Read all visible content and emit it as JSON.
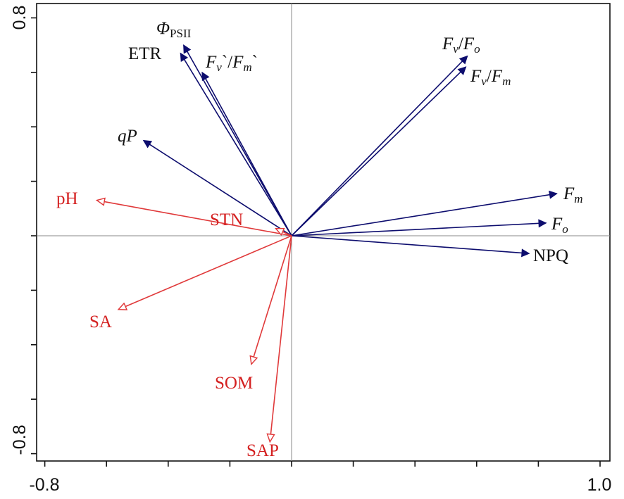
{
  "chart_data": {
    "type": "biplot",
    "title": "",
    "xlim": [
      -0.8,
      1.0
    ],
    "ylim": [
      -0.8,
      0.8
    ],
    "x_tick_labels": [
      "-0.8",
      "1.0"
    ],
    "y_tick_labels": [
      "0.8",
      "-0.8"
    ],
    "x_ticks": [
      -0.8,
      -0.6,
      -0.4,
      -0.2,
      0,
      0.2,
      0.4,
      0.6,
      0.8,
      1.0
    ],
    "y_ticks": [
      0.8,
      0.6,
      0.4,
      0.2,
      0,
      -0.2,
      -0.4,
      -0.6,
      -0.8
    ],
    "colors": {
      "response": "#0d0d6e",
      "explanatory": "#e0393a",
      "label_response": "#111111",
      "label_explanatory": "#d42020"
    },
    "response_vectors": [
      {
        "id": "phipsii",
        "label": "ΦPSII",
        "parts": [
          {
            "t": "Φ",
            "i": true
          },
          {
            "t": "PSII",
            "sub": true
          }
        ],
        "x": -0.35,
        "y": 0.7
      },
      {
        "id": "etr",
        "label": "ETR",
        "parts": [
          {
            "t": "ETR"
          }
        ],
        "x": -0.36,
        "y": 0.67
      },
      {
        "id": "fvfm_prime",
        "label": "Fv`/Fm`",
        "parts": [
          {
            "t": "F",
            "i": true
          },
          {
            "t": "v",
            "i": true,
            "sub": true
          },
          {
            "t": "`/"
          },
          {
            "t": "F",
            "i": true
          },
          {
            "t": "m",
            "i": true,
            "sub": true
          },
          {
            "t": "`"
          }
        ],
        "x": -0.29,
        "y": 0.6
      },
      {
        "id": "qp",
        "label": "qP",
        "parts": [
          {
            "t": "qP",
            "i": true
          }
        ],
        "x": -0.48,
        "y": 0.35
      },
      {
        "id": "fvfo",
        "label": "Fv/Fo",
        "parts": [
          {
            "t": "F",
            "i": true
          },
          {
            "t": "v",
            "i": true,
            "sub": true
          },
          {
            "t": "/"
          },
          {
            "t": "F",
            "i": true
          },
          {
            "t": "o",
            "i": true,
            "sub": true
          }
        ],
        "x": 0.57,
        "y": 0.66
      },
      {
        "id": "fvfm",
        "label": "Fv/Fm",
        "parts": [
          {
            "t": "F",
            "i": true
          },
          {
            "t": "v",
            "i": true,
            "sub": true
          },
          {
            "t": "/"
          },
          {
            "t": "F",
            "i": true
          },
          {
            "t": "m",
            "i": true,
            "sub": true
          }
        ],
        "x": 0.565,
        "y": 0.62
      },
      {
        "id": "fm",
        "label": "Fm",
        "parts": [
          {
            "t": "F",
            "i": true
          },
          {
            "t": "m",
            "i": true,
            "sub": true
          }
        ],
        "x": 0.86,
        "y": 0.155
      },
      {
        "id": "fo",
        "label": "Fo",
        "parts": [
          {
            "t": "F",
            "i": true
          },
          {
            "t": "o",
            "i": true,
            "sub": true
          }
        ],
        "x": 0.825,
        "y": 0.047
      },
      {
        "id": "npq",
        "label": "NPQ",
        "parts": [
          {
            "t": "NPQ"
          }
        ],
        "x": 0.77,
        "y": -0.065
      }
    ],
    "explanatory_vectors": [
      {
        "id": "ph",
        "label": "pH",
        "parts": [
          {
            "t": "pH"
          }
        ],
        "x": -0.63,
        "y": 0.13
      },
      {
        "id": "stn",
        "label": "STN",
        "parts": [
          {
            "t": "STN"
          }
        ],
        "x": -0.05,
        "y": 0.026
      },
      {
        "id": "sa",
        "label": "SA",
        "parts": [
          {
            "t": "SA"
          }
        ],
        "x": -0.56,
        "y": -0.27
      },
      {
        "id": "som",
        "label": "SOM",
        "parts": [
          {
            "t": "SOM"
          }
        ],
        "x": -0.13,
        "y": -0.47
      },
      {
        "id": "sap",
        "label": "SAP",
        "parts": [
          {
            "t": "SAP"
          }
        ],
        "x": -0.07,
        "y": -0.755
      }
    ]
  }
}
